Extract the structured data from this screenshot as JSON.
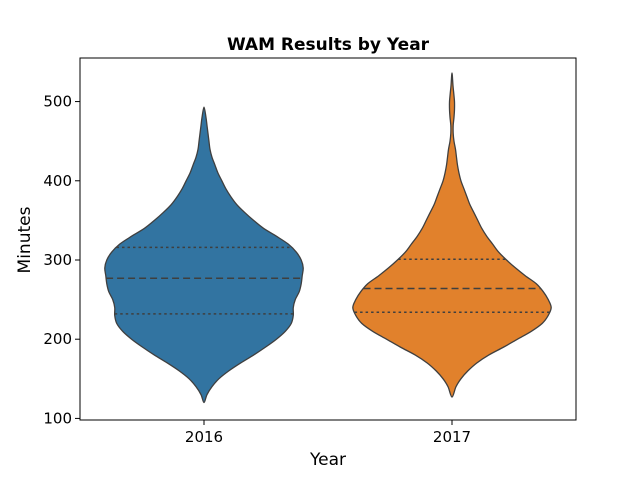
{
  "chart_data": {
    "type": "violin",
    "title": "WAM Results by Year",
    "xlabel": "Year",
    "ylabel": "Minutes",
    "categories": [
      "2016",
      "2017"
    ],
    "ylim": [
      98,
      555
    ],
    "yticks": [
      100,
      200,
      300,
      400,
      500
    ],
    "series": [
      {
        "category": "2016",
        "color": "#3274a1",
        "min": 120,
        "max": 493,
        "quartiles": {
          "q1": 232,
          "median": 277,
          "q3": 316
        },
        "profile": [
          [
            120,
            0.0
          ],
          [
            130,
            0.03
          ],
          [
            140,
            0.08
          ],
          [
            150,
            0.15
          ],
          [
            160,
            0.25
          ],
          [
            170,
            0.37
          ],
          [
            180,
            0.5
          ],
          [
            190,
            0.62
          ],
          [
            200,
            0.73
          ],
          [
            210,
            0.82
          ],
          [
            220,
            0.88
          ],
          [
            230,
            0.9
          ],
          [
            240,
            0.9
          ],
          [
            250,
            0.92
          ],
          [
            260,
            0.96
          ],
          [
            270,
            0.98
          ],
          [
            280,
            0.99
          ],
          [
            290,
            1.0
          ],
          [
            300,
            0.98
          ],
          [
            310,
            0.93
          ],
          [
            320,
            0.85
          ],
          [
            330,
            0.73
          ],
          [
            340,
            0.6
          ],
          [
            350,
            0.5
          ],
          [
            360,
            0.41
          ],
          [
            370,
            0.33
          ],
          [
            380,
            0.27
          ],
          [
            390,
            0.22
          ],
          [
            400,
            0.18
          ],
          [
            410,
            0.14
          ],
          [
            420,
            0.11
          ],
          [
            430,
            0.08
          ],
          [
            440,
            0.06
          ],
          [
            450,
            0.05
          ],
          [
            460,
            0.04
          ],
          [
            470,
            0.03
          ],
          [
            480,
            0.02
          ],
          [
            493,
            0.0
          ]
        ]
      },
      {
        "category": "2017",
        "color": "#e1812c",
        "min": 127,
        "max": 536,
        "quartiles": {
          "q1": 234,
          "median": 264,
          "q3": 301
        },
        "profile": [
          [
            127,
            0.0
          ],
          [
            140,
            0.04
          ],
          [
            150,
            0.09
          ],
          [
            160,
            0.16
          ],
          [
            170,
            0.25
          ],
          [
            180,
            0.37
          ],
          [
            190,
            0.52
          ],
          [
            200,
            0.66
          ],
          [
            210,
            0.8
          ],
          [
            220,
            0.91
          ],
          [
            230,
            0.97
          ],
          [
            240,
            1.0
          ],
          [
            250,
            0.97
          ],
          [
            260,
            0.92
          ],
          [
            270,
            0.85
          ],
          [
            280,
            0.74
          ],
          [
            290,
            0.64
          ],
          [
            300,
            0.55
          ],
          [
            310,
            0.47
          ],
          [
            320,
            0.41
          ],
          [
            330,
            0.35
          ],
          [
            340,
            0.3
          ],
          [
            350,
            0.26
          ],
          [
            360,
            0.22
          ],
          [
            370,
            0.18
          ],
          [
            380,
            0.15
          ],
          [
            390,
            0.12
          ],
          [
            400,
            0.09
          ],
          [
            410,
            0.07
          ],
          [
            420,
            0.055
          ],
          [
            430,
            0.045
          ],
          [
            440,
            0.035
          ],
          [
            450,
            0.02
          ],
          [
            460,
            0.012
          ],
          [
            470,
            0.012
          ],
          [
            480,
            0.02
          ],
          [
            490,
            0.025
          ],
          [
            500,
            0.025
          ],
          [
            510,
            0.018
          ],
          [
            520,
            0.01
          ],
          [
            536,
            0.0
          ]
        ]
      }
    ]
  }
}
